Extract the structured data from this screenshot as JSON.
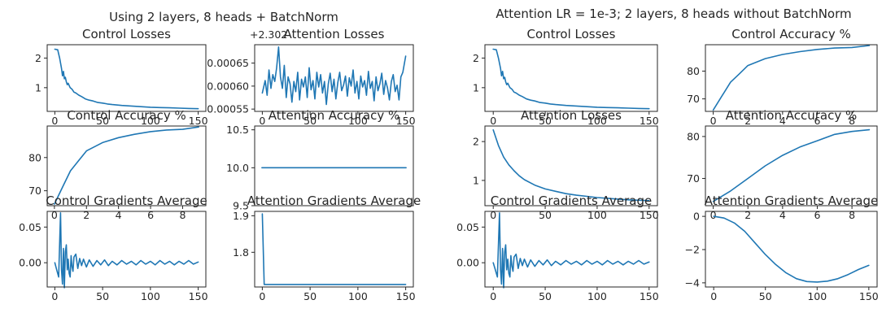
{
  "figures": [
    {
      "title": "Using 2 layers, 8 heads + BatchNorm"
    },
    {
      "title": "Attention LR = 1e-3; 2 layers, 8 heads without BatchNorm"
    }
  ],
  "colors": {
    "series": "#1f77b4"
  },
  "chart_data": [
    {
      "type": "line",
      "figure": 0,
      "row": 0,
      "col": 0,
      "title": "Control Losses",
      "xlim": [
        -8,
        158
      ],
      "ylim": [
        0.2,
        2.45
      ],
      "xticks": [
        0,
        50,
        100,
        150
      ],
      "xtick_labels": [
        "0",
        "50",
        "100",
        "150"
      ],
      "yticks": [
        1,
        2
      ],
      "ytick_labels": [
        "1",
        "2"
      ],
      "series": [
        {
          "x": [
            0,
            3,
            5,
            7,
            8,
            9,
            10,
            11,
            12,
            13,
            14,
            16,
            18,
            20,
            22,
            25,
            28,
            32,
            36,
            40,
            45,
            50,
            55,
            60,
            70,
            80,
            90,
            100,
            110,
            120,
            130,
            140,
            150
          ],
          "y": [
            2.3,
            2.28,
            2.0,
            1.65,
            1.4,
            1.55,
            1.3,
            1.35,
            1.2,
            1.1,
            1.15,
            1.0,
            0.95,
            0.85,
            0.82,
            0.75,
            0.7,
            0.62,
            0.58,
            0.55,
            0.5,
            0.48,
            0.45,
            0.43,
            0.4,
            0.38,
            0.36,
            0.34,
            0.33,
            0.32,
            0.31,
            0.3,
            0.29
          ]
        }
      ]
    },
    {
      "type": "line",
      "figure": 0,
      "row": 0,
      "col": 1,
      "title": "Attention Losses",
      "offset_text": "+2.302",
      "xlim": [
        -8,
        158
      ],
      "ylim": [
        0.000545,
        0.00069
      ],
      "xticks": [
        0,
        50,
        100,
        150
      ],
      "xtick_labels": [
        "0",
        "50",
        "100",
        "150"
      ],
      "yticks": [
        0.00055,
        0.0006,
        0.00065
      ],
      "ytick_labels": [
        "0.00055",
        "0.00060",
        "0.00065"
      ],
      "series": [
        {
          "x": [
            0,
            3,
            5,
            7,
            9,
            11,
            13,
            15,
            17,
            19,
            21,
            23,
            25,
            27,
            29,
            31,
            33,
            35,
            37,
            39,
            41,
            43,
            45,
            47,
            49,
            51,
            53,
            55,
            57,
            59,
            61,
            63,
            65,
            67,
            69,
            71,
            73,
            75,
            77,
            79,
            81,
            83,
            85,
            87,
            89,
            91,
            93,
            95,
            97,
            99,
            101,
            103,
            105,
            107,
            109,
            111,
            113,
            115,
            117,
            119,
            121,
            123,
            125,
            127,
            129,
            131,
            133,
            135,
            137,
            139,
            141,
            143,
            145,
            147,
            150
          ],
          "y": [
            0.000585,
            0.000612,
            0.00058,
            0.000635,
            0.000595,
            0.000625,
            0.00061,
            0.00064,
            0.000685,
            0.00062,
            0.000595,
            0.000645,
            0.000575,
            0.00062,
            0.000605,
            0.000565,
            0.00061,
            0.000588,
            0.00063,
            0.00057,
            0.000615,
            0.000598,
            0.00062,
            0.000575,
            0.00064,
            0.000592,
            0.000612,
            0.000572,
            0.00063,
            0.000598,
            0.000625,
            0.000585,
            0.00061,
            0.00056,
            0.000605,
            0.000628,
            0.000588,
            0.000615,
            0.000572,
            0.000608,
            0.00063,
            0.00059,
            0.000602,
            0.000622,
            0.000578,
            0.000618,
            0.0006,
            0.000635,
            0.000585,
            0.00061,
            0.000572,
            0.000622,
            0.000598,
            0.000612,
            0.00058,
            0.000632,
            0.000595,
            0.00061,
            0.000568,
            0.00062,
            0.00059,
            0.000605,
            0.000628,
            0.000582,
            0.000612,
            0.000596,
            0.00057,
            0.00061,
            0.000625,
            0.000588,
            0.000602,
            0.00057,
            0.00062,
            0.00063,
            0.000665
          ]
        }
      ]
    },
    {
      "type": "line",
      "figure": 0,
      "row": 1,
      "col": 0,
      "title": "Control Accuracy %",
      "xlim": [
        -0.45,
        9.45
      ],
      "ylim": [
        65.5,
        89.5
      ],
      "xticks": [
        0,
        2,
        4,
        6,
        8
      ],
      "xtick_labels": [
        "0",
        "2",
        "4",
        "6",
        "8"
      ],
      "yticks": [
        70,
        80
      ],
      "ytick_labels": [
        "70",
        "80"
      ],
      "series": [
        {
          "x": [
            0,
            0.5,
            1,
            1.5,
            2,
            3,
            4,
            5,
            6,
            7,
            8,
            9
          ],
          "y": [
            66,
            71,
            76,
            79,
            82,
            84.5,
            86,
            87,
            87.8,
            88.3,
            88.5,
            89.2
          ]
        }
      ]
    },
    {
      "type": "line",
      "figure": 0,
      "row": 1,
      "col": 1,
      "title": "Attention Accuracy %",
      "xlim": [
        -0.45,
        9.45
      ],
      "ylim": [
        9.5,
        10.55
      ],
      "xticks": [],
      "xtick_labels": [],
      "yticks": [
        9.5,
        10.0,
        10.5
      ],
      "ytick_labels": [
        "9.5",
        "10.0",
        "10.5"
      ],
      "series": [
        {
          "x": [
            0,
            9
          ],
          "y": [
            10.0,
            10.0
          ]
        }
      ]
    },
    {
      "type": "line",
      "figure": 0,
      "row": 2,
      "col": 0,
      "title": "Control Gradients Average",
      "xlim": [
        -8,
        158
      ],
      "ylim": [
        -0.034,
        0.072
      ],
      "xticks": [
        0,
        50,
        100,
        150
      ],
      "xtick_labels": [
        "0",
        "50",
        "100",
        "150"
      ],
      "yticks": [
        0.0,
        0.05
      ],
      "ytick_labels": [
        "0.00",
        "0.05"
      ],
      "series": [
        {
          "x": [
            0,
            2,
            4,
            6,
            7,
            8,
            9,
            10,
            11,
            12,
            13,
            14,
            15,
            16,
            17,
            18,
            19,
            20,
            22,
            24,
            26,
            28,
            30,
            33,
            36,
            40,
            44,
            48,
            52,
            56,
            60,
            65,
            70,
            75,
            80,
            85,
            90,
            95,
            100,
            105,
            110,
            115,
            120,
            125,
            130,
            135,
            140,
            145,
            150
          ],
          "y": [
            0,
            -0.01,
            -0.02,
            0.07,
            -0.01,
            -0.03,
            0.02,
            -0.035,
            0.015,
            0.025,
            -0.01,
            0.005,
            -0.015,
            -0.02,
            0.01,
            -0.005,
            -0.012,
            0.008,
            0.012,
            -0.008,
            0.006,
            -0.004,
            0.005,
            -0.006,
            0.004,
            -0.005,
            0.003,
            -0.003,
            0.004,
            -0.004,
            0.002,
            -0.003,
            0.003,
            -0.002,
            0.002,
            -0.003,
            0.003,
            -0.002,
            0.002,
            -0.003,
            0.003,
            -0.002,
            0.002,
            -0.003,
            0.002,
            -0.002,
            0.003,
            -0.002,
            0.001
          ]
        }
      ]
    },
    {
      "type": "line",
      "figure": 0,
      "row": 2,
      "col": 1,
      "title": "Attention Gradients Average",
      "xlim": [
        -8,
        158
      ],
      "ylim": [
        1.705,
        1.912
      ],
      "xticks": [
        0,
        50,
        100,
        150
      ],
      "xtick_labels": [
        "0",
        "50",
        "100",
        "150"
      ],
      "yticks": [
        1.8,
        1.9
      ],
      "ytick_labels": [
        "1.8",
        "1.9"
      ],
      "series": [
        {
          "x": [
            0,
            2,
            150
          ],
          "y": [
            1.905,
            1.712,
            1.712
          ]
        }
      ]
    },
    {
      "type": "line",
      "figure": 1,
      "row": 0,
      "col": 0,
      "title": "Control Losses",
      "xlim": [
        -8,
        158
      ],
      "ylim": [
        0.2,
        2.45
      ],
      "xticks": [
        0,
        50,
        100,
        150
      ],
      "xtick_labels": [
        "0",
        "50",
        "100",
        "150"
      ],
      "yticks": [
        1,
        2
      ],
      "ytick_labels": [
        "1",
        "2"
      ],
      "series": [
        {
          "x": [
            0,
            3,
            5,
            7,
            8,
            9,
            10,
            11,
            12,
            13,
            14,
            16,
            18,
            20,
            22,
            25,
            28,
            32,
            36,
            40,
            45,
            50,
            55,
            60,
            70,
            80,
            90,
            100,
            110,
            120,
            130,
            140,
            150
          ],
          "y": [
            2.3,
            2.28,
            2.0,
            1.65,
            1.4,
            1.55,
            1.3,
            1.35,
            1.2,
            1.1,
            1.15,
            1.0,
            0.95,
            0.85,
            0.82,
            0.75,
            0.7,
            0.62,
            0.58,
            0.55,
            0.5,
            0.48,
            0.45,
            0.43,
            0.4,
            0.38,
            0.36,
            0.34,
            0.33,
            0.32,
            0.31,
            0.3,
            0.29
          ]
        }
      ]
    },
    {
      "type": "line",
      "figure": 1,
      "row": 0,
      "col": 1,
      "title": "Control Accuracy %",
      "xlim": [
        -0.45,
        9.45
      ],
      "ylim": [
        65.5,
        89.5
      ],
      "xticks": [
        0,
        2,
        4,
        6,
        8
      ],
      "xtick_labels": [
        "0",
        "2",
        "4",
        "6",
        "8"
      ],
      "yticks": [
        70,
        80
      ],
      "ytick_labels": [
        "70",
        "80"
      ],
      "series": [
        {
          "x": [
            0,
            0.5,
            1,
            1.5,
            2,
            3,
            4,
            5,
            6,
            7,
            8,
            9
          ],
          "y": [
            66,
            71,
            76,
            79,
            82,
            84.5,
            86,
            87,
            87.8,
            88.3,
            88.5,
            89.2
          ]
        }
      ]
    },
    {
      "type": "line",
      "figure": 1,
      "row": 1,
      "col": 0,
      "title": "Attention Losses",
      "xlim": [
        -8,
        158
      ],
      "ylim": [
        0.35,
        2.4
      ],
      "xticks": [
        0,
        50,
        100,
        150
      ],
      "xtick_labels": [
        "0",
        "50",
        "100",
        "150"
      ],
      "yticks": [
        1,
        2
      ],
      "ytick_labels": [
        "1",
        "2"
      ],
      "series": [
        {
          "x": [
            0,
            5,
            10,
            15,
            20,
            25,
            30,
            40,
            50,
            60,
            70,
            80,
            90,
            100,
            110,
            120,
            130,
            140,
            150
          ],
          "y": [
            2.3,
            1.9,
            1.6,
            1.4,
            1.25,
            1.12,
            1.02,
            0.88,
            0.78,
            0.72,
            0.66,
            0.62,
            0.59,
            0.56,
            0.54,
            0.52,
            0.5,
            0.49,
            0.48
          ]
        }
      ]
    },
    {
      "type": "line",
      "figure": 1,
      "row": 1,
      "col": 1,
      "title": "Attention Accuracy %",
      "xlim": [
        -0.45,
        9.45
      ],
      "ylim": [
        63.5,
        82.5
      ],
      "xticks": [
        0,
        2,
        4,
        6,
        8
      ],
      "xtick_labels": [
        "0",
        "2",
        "4",
        "6",
        "8"
      ],
      "yticks": [
        70,
        80
      ],
      "ytick_labels": [
        "70",
        "80"
      ],
      "series": [
        {
          "x": [
            0,
            1,
            2,
            3,
            4,
            5,
            6,
            7,
            8,
            9
          ],
          "y": [
            64.5,
            67,
            70,
            73,
            75.5,
            77.5,
            79,
            80.5,
            81.2,
            81.6
          ]
        }
      ]
    },
    {
      "type": "line",
      "figure": 1,
      "row": 2,
      "col": 0,
      "title": "Control Gradients Average",
      "xlim": [
        -8,
        158
      ],
      "ylim": [
        -0.034,
        0.072
      ],
      "xticks": [
        0,
        50,
        100,
        150
      ],
      "xtick_labels": [
        "0",
        "50",
        "100",
        "150"
      ],
      "yticks": [
        0.0,
        0.05
      ],
      "ytick_labels": [
        "0.00",
        "0.05"
      ],
      "series": [
        {
          "x": [
            0,
            2,
            4,
            6,
            7,
            8,
            9,
            10,
            11,
            12,
            13,
            14,
            15,
            16,
            17,
            18,
            19,
            20,
            22,
            24,
            26,
            28,
            30,
            33,
            36,
            40,
            44,
            48,
            52,
            56,
            60,
            65,
            70,
            75,
            80,
            85,
            90,
            95,
            100,
            105,
            110,
            115,
            120,
            125,
            130,
            135,
            140,
            145,
            150
          ],
          "y": [
            0,
            -0.01,
            -0.02,
            0.07,
            -0.01,
            -0.03,
            0.02,
            -0.035,
            0.015,
            0.025,
            -0.01,
            0.005,
            -0.015,
            -0.02,
            0.01,
            -0.005,
            -0.012,
            0.008,
            0.012,
            -0.008,
            0.006,
            -0.004,
            0.005,
            -0.006,
            0.004,
            -0.005,
            0.003,
            -0.003,
            0.004,
            -0.004,
            0.002,
            -0.003,
            0.003,
            -0.002,
            0.002,
            -0.003,
            0.003,
            -0.002,
            0.002,
            -0.003,
            0.003,
            -0.002,
            0.002,
            -0.003,
            0.002,
            -0.002,
            0.003,
            -0.002,
            0.001
          ]
        }
      ]
    },
    {
      "type": "line",
      "figure": 1,
      "row": 2,
      "col": 1,
      "title": "Attention Gradients Average",
      "xlim": [
        -8,
        158
      ],
      "ylim": [
        -4.25,
        0.3
      ],
      "xticks": [
        0,
        50,
        100,
        150
      ],
      "xtick_labels": [
        "0",
        "50",
        "100",
        "150"
      ],
      "yticks": [
        -4,
        -2,
        0
      ],
      "ytick_labels": [
        "−4",
        "−2",
        "0"
      ],
      "series": [
        {
          "x": [
            0,
            10,
            20,
            30,
            40,
            50,
            60,
            70,
            80,
            90,
            100,
            110,
            120,
            130,
            140,
            150
          ],
          "y": [
            0,
            -0.1,
            -0.4,
            -0.9,
            -1.6,
            -2.3,
            -2.9,
            -3.4,
            -3.75,
            -3.92,
            -3.95,
            -3.9,
            -3.75,
            -3.5,
            -3.2,
            -2.95
          ]
        }
      ]
    }
  ]
}
